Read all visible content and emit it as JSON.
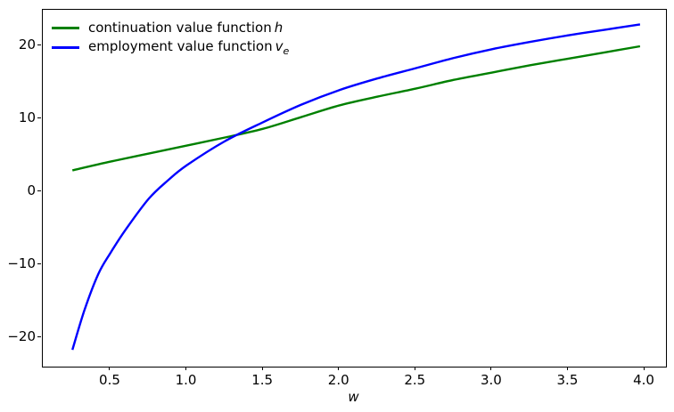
{
  "chart_data": {
    "type": "line",
    "title": "",
    "xlabel": "w",
    "ylabel": "",
    "xlim": [
      0.056,
      4.14
    ],
    "ylim": [
      -24.0,
      24.9
    ],
    "grid": false,
    "x_ticks": [
      0.5,
      1.0,
      1.5,
      2.0,
      2.5,
      3.0,
      3.5,
      4.0
    ],
    "x_tick_labels": [
      "0.5",
      "1.0",
      "1.5",
      "2.0",
      "2.5",
      "3.0",
      "3.5",
      "4.0"
    ],
    "y_ticks": [
      -20,
      -10,
      0,
      10,
      20
    ],
    "y_tick_labels": [
      "−20",
      "−10",
      "0",
      "10",
      "20"
    ],
    "legend": {
      "position": "upper-left",
      "frame": false,
      "items": [
        {
          "text": "continuation value function",
          "math": "h",
          "sub": ""
        },
        {
          "text": "employment value function",
          "math": "v",
          "sub": "e"
        }
      ]
    },
    "series": [
      {
        "name": "continuation value function h",
        "color": "#008000",
        "line_width": 2.4,
        "points": [
          [
            0.25,
            2.9
          ],
          [
            0.5,
            4.1
          ],
          [
            0.75,
            5.2
          ],
          [
            1.0,
            6.3
          ],
          [
            1.25,
            7.4
          ],
          [
            1.5,
            8.6
          ],
          [
            1.75,
            10.2
          ],
          [
            2.0,
            11.8
          ],
          [
            2.25,
            13.0
          ],
          [
            2.5,
            14.1
          ],
          [
            2.75,
            15.3
          ],
          [
            3.0,
            16.3
          ],
          [
            3.25,
            17.3
          ],
          [
            3.5,
            18.2
          ],
          [
            3.75,
            19.1
          ],
          [
            3.97,
            19.9
          ]
        ]
      },
      {
        "name": "employment value function v_e",
        "color": "#0000ff",
        "line_width": 2.4,
        "points": [
          [
            0.25,
            -21.7
          ],
          [
            0.33,
            -16.2
          ],
          [
            0.42,
            -11.3
          ],
          [
            0.5,
            -8.4
          ],
          [
            0.6,
            -5.2
          ],
          [
            0.75,
            -1.0
          ],
          [
            0.875,
            1.5
          ],
          [
            1.0,
            3.6
          ],
          [
            1.25,
            6.9
          ],
          [
            1.5,
            9.5
          ],
          [
            1.75,
            11.9
          ],
          [
            2.0,
            13.9
          ],
          [
            2.25,
            15.5
          ],
          [
            2.5,
            16.9
          ],
          [
            2.75,
            18.3
          ],
          [
            3.0,
            19.5
          ],
          [
            3.25,
            20.5
          ],
          [
            3.5,
            21.4
          ],
          [
            3.75,
            22.2
          ],
          [
            3.97,
            22.9
          ]
        ]
      }
    ],
    "crossing_point": {
      "w": 1.38,
      "value": 7.7
    }
  }
}
